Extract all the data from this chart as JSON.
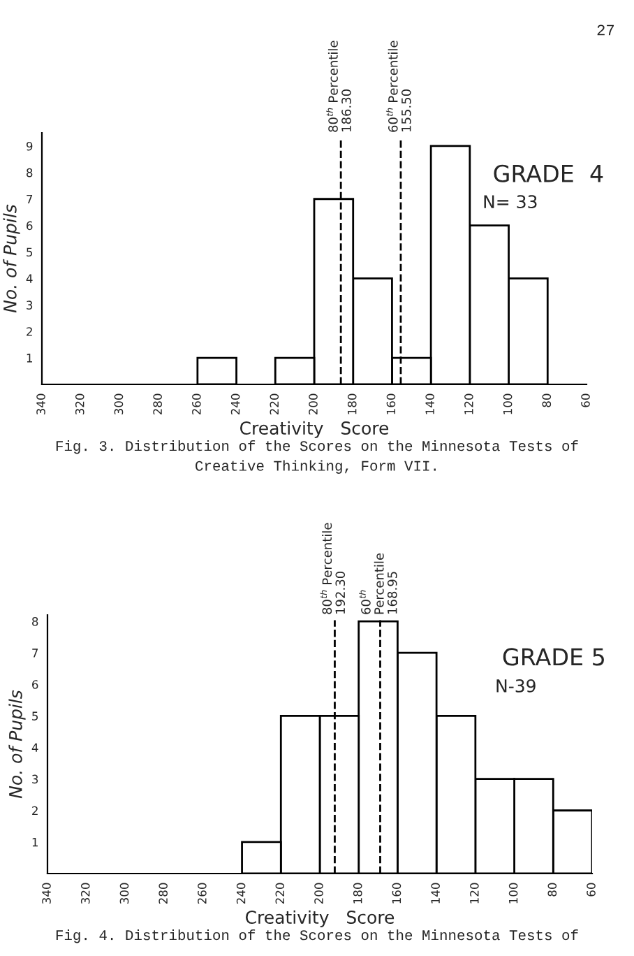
{
  "chart_data": [
    {
      "type": "histogram",
      "xlabel": "Creativity   Score",
      "ylabel": "No. of Pupils",
      "bins": [
        80,
        100,
        120,
        140,
        160,
        180,
        200,
        220,
        240,
        260
      ],
      "values": [
        4,
        6,
        9,
        1,
        4,
        7,
        1,
        0,
        1
      ],
      "color": "#ffffff",
      "xlim": [
        340,
        60
      ],
      "xticks": [
        340,
        320,
        300,
        280,
        260,
        240,
        220,
        200,
        180,
        160,
        140,
        120,
        100,
        80,
        60
      ],
      "ylim": [
        0,
        9.5
      ],
      "yticks": [
        1,
        2,
        3,
        4,
        5,
        6,
        7,
        8,
        9
      ],
      "grid": false,
      "ref_lines": [
        {
          "axis": "x",
          "value": 186.3,
          "label": "80$^{th}$ Percentile\n186.30",
          "color": "#000000",
          "line_style": "dashed"
        },
        {
          "axis": "x",
          "value": 155.5,
          "label": "60$^{th}$ Percentile\n155.50",
          "color": "#000000",
          "line_style": "dashed"
        }
      ],
      "annotations": [
        "GRADE  4",
        "N= 33",
        "Fig. 3. Distribution of the Scores on the Minnesota Tests of\nCreative Thinking, Form VII.",
        "27"
      ]
    },
    {
      "type": "histogram",
      "xlabel": "Creativity   Score",
      "ylabel": "No. of Pupils",
      "bins": [
        60,
        80,
        100,
        120,
        140,
        160,
        180,
        200,
        220,
        240
      ],
      "values": [
        2,
        3,
        3,
        5,
        7,
        8,
        5,
        5,
        1
      ],
      "color": "#ffffff",
      "xlim": [
        340,
        60
      ],
      "xticks": [
        340,
        320,
        300,
        280,
        260,
        240,
        220,
        200,
        180,
        160,
        140,
        120,
        100,
        80,
        60
      ],
      "ylim": [
        0,
        8.2
      ],
      "yticks": [
        1,
        2,
        3,
        4,
        5,
        6,
        7,
        8
      ],
      "grid": false,
      "ref_lines": [
        {
          "axis": "x",
          "value": 192.3,
          "label": "80$^{th}$ Percentile\n192.30",
          "color": "#000000",
          "line_style": "dashed"
        },
        {
          "axis": "x",
          "value": 168.95,
          "label": "60$^{th}$\nPercentile\n168.95",
          "color": "#000000",
          "line_style": "dashed"
        }
      ],
      "annotations": [
        "GRADE 5",
        "N-39",
        "Fig. 4. Distribution of the Scores on the Minnesota Tests of"
      ]
    }
  ]
}
